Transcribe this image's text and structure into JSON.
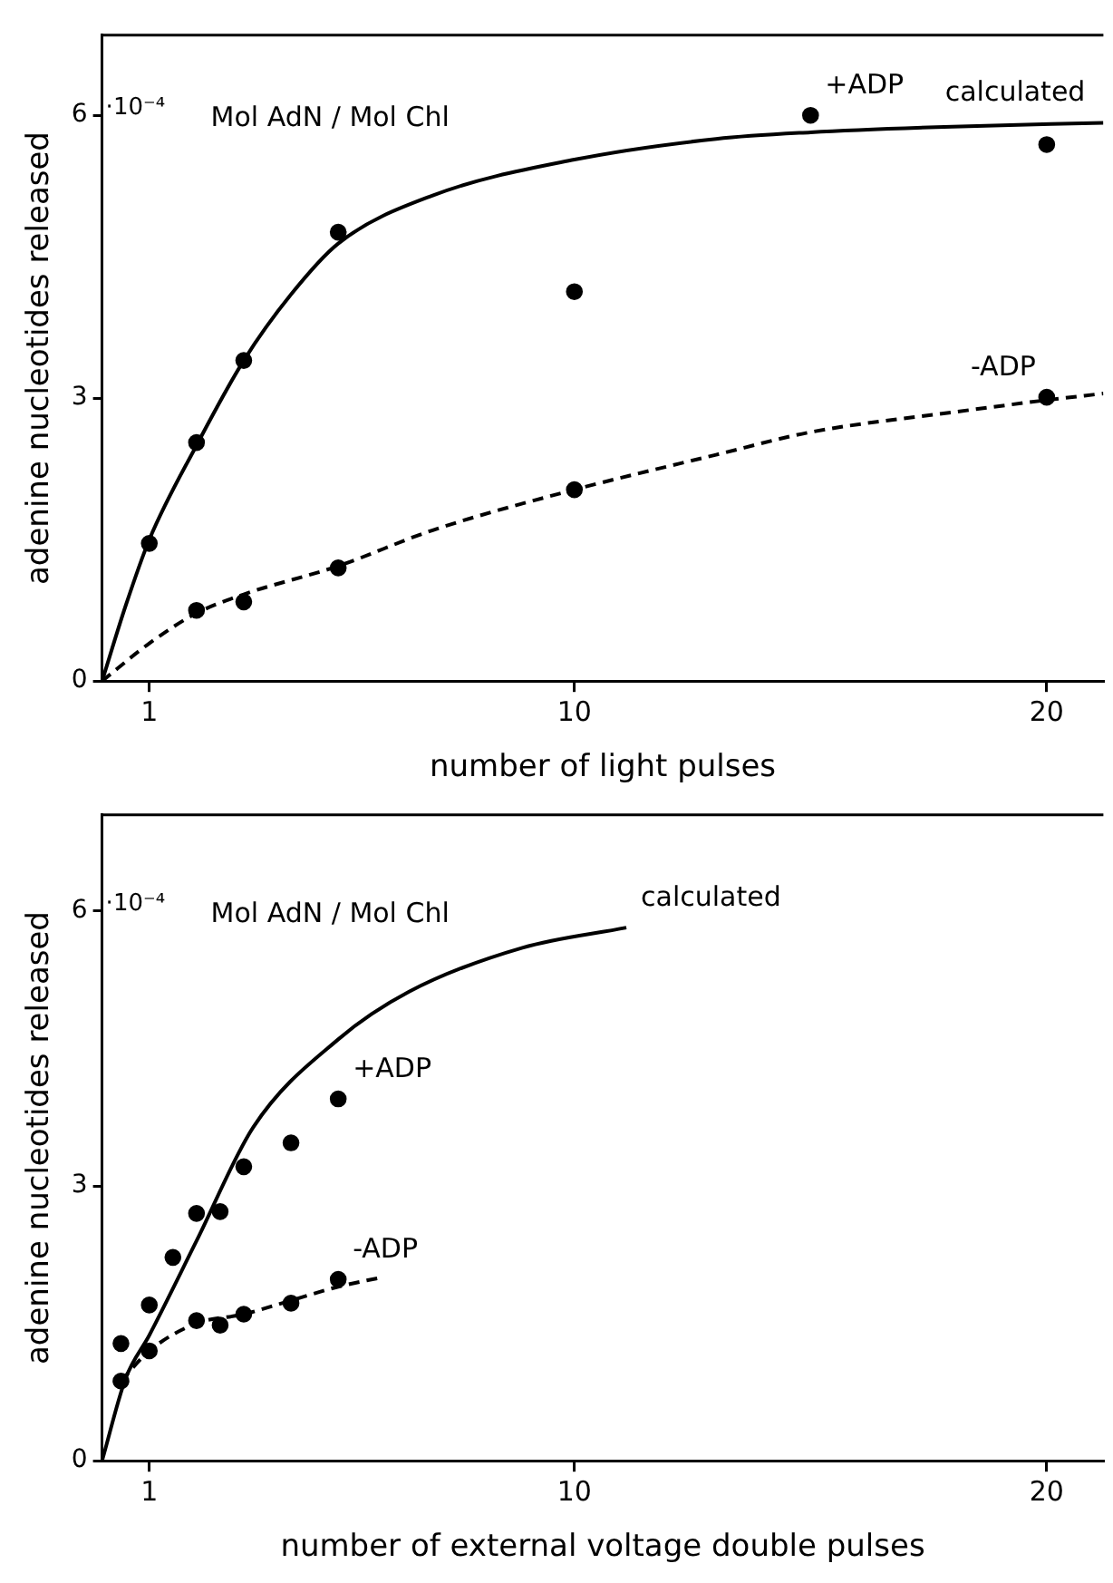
{
  "chart_data": [
    {
      "type": "scatter",
      "xlabel": "number of light pulses",
      "ylabel": "adenine nucleotides released",
      "xlim": [
        0,
        21.2
      ],
      "ylim": [
        0,
        6.85
      ],
      "xticks": [
        1,
        10,
        20
      ],
      "yticks": [
        0,
        3,
        6
      ],
      "grid": false,
      "legend": false,
      "annotations": [
        "·10⁻⁴",
        "Mol AdN / Mol Chl"
      ],
      "series": [
        {
          "name": "+ADP",
          "marker": "circle",
          "color": "#000000",
          "x": [
            1,
            2,
            3,
            5,
            10,
            15,
            20
          ],
          "values": [
            1.46,
            2.53,
            3.4,
            4.76,
            4.13,
            6.0,
            5.69
          ]
        },
        {
          "name": "-ADP",
          "marker": "circle",
          "color": "#000000",
          "x": [
            2,
            3,
            5,
            10,
            20
          ],
          "values": [
            0.75,
            0.84,
            1.2,
            2.03,
            3.01
          ]
        },
        {
          "name": "calculated",
          "type": "line",
          "marker": "none",
          "line_style": "solid",
          "color": "#000000",
          "x": [
            0,
            0.5,
            1,
            2,
            3,
            4,
            5,
            7,
            10,
            13,
            15,
            18,
            21.2
          ],
          "values": [
            0,
            0.8,
            1.5,
            2.5,
            3.4,
            4.1,
            4.64,
            5.15,
            5.53,
            5.75,
            5.82,
            5.88,
            5.92
          ]
        },
        {
          "type": "line",
          "marker": "none",
          "line_style": "dashed",
          "color": "#000000",
          "x": [
            0,
            1,
            2,
            3,
            5,
            7,
            10,
            13,
            15,
            18,
            20,
            21.2
          ],
          "values": [
            0,
            0.4,
            0.72,
            0.92,
            1.22,
            1.6,
            2.03,
            2.4,
            2.64,
            2.85,
            2.98,
            3.05
          ]
        }
      ]
    },
    {
      "type": "scatter",
      "xlabel": "number of external voltage double pulses",
      "ylabel": "adenine nucleotides released",
      "xlim": [
        0,
        21.2
      ],
      "ylim": [
        0,
        7.05
      ],
      "xticks": [
        1,
        10,
        20
      ],
      "yticks": [
        0,
        3,
        6
      ],
      "grid": false,
      "legend": false,
      "annotations": [
        "·10⁻⁴",
        "Mol AdN / Mol Chl"
      ],
      "series": [
        {
          "name": "+ADP",
          "marker": "circle",
          "color": "#000000",
          "x": [
            0.4,
            1,
            1.5,
            2,
            2.5,
            3,
            4,
            5
          ],
          "values": [
            1.28,
            1.7,
            2.22,
            2.7,
            2.72,
            3.21,
            3.47,
            3.95
          ]
        },
        {
          "name": "-ADP",
          "marker": "circle",
          "color": "#000000",
          "x": [
            0.4,
            1,
            2,
            2.5,
            3,
            4,
            5
          ],
          "values": [
            0.87,
            1.2,
            1.53,
            1.48,
            1.6,
            1.72,
            1.98
          ]
        },
        {
          "name": "calculated",
          "type": "line",
          "marker": "none",
          "line_style": "solid",
          "color": "#000000",
          "x": [
            0,
            0.5,
            1,
            2,
            3.2,
            5,
            6.5,
            8.9,
            11.1
          ],
          "values": [
            0,
            0.9,
            1.37,
            2.4,
            3.64,
            4.6,
            5.12,
            5.6,
            5.82
          ]
        },
        {
          "type": "line",
          "marker": "none",
          "line_style": "dashed",
          "color": "#000000",
          "x": [
            0.4,
            1,
            2,
            3,
            4,
            5,
            5.9
          ],
          "values": [
            0.87,
            1.2,
            1.5,
            1.6,
            1.75,
            1.9,
            2.0
          ]
        }
      ]
    }
  ]
}
